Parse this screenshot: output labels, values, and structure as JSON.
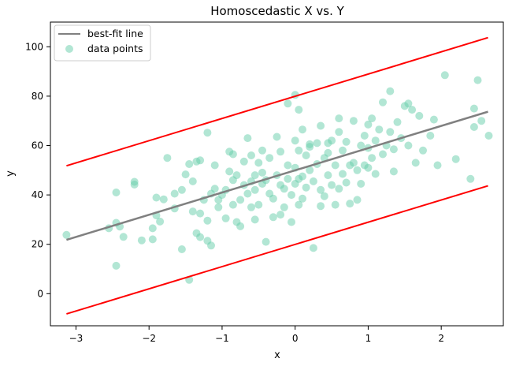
{
  "chart_data": {
    "type": "scatter",
    "title": "Homoscedastic X vs. Y",
    "xlabel": "x",
    "ylabel": "y",
    "xlim": [
      -3.35,
      2.85
    ],
    "ylim": [
      -13,
      110
    ],
    "xticks": [
      -3,
      -2,
      -1,
      0,
      1,
      2
    ],
    "yticks": [
      0,
      20,
      40,
      60,
      80,
      100
    ],
    "grid": false,
    "legend_position": "top-left",
    "colors": {
      "points": "#66cdaa",
      "fit_line": "#808080",
      "bounds": "#ff0000"
    },
    "series": [
      {
        "name": "best-fit line",
        "kind": "line",
        "x": [
          -3.13,
          2.64
        ],
        "y": [
          21.8,
          73.7
        ]
      },
      {
        "kind": "line",
        "x": [
          -3.13,
          2.64
        ],
        "y": [
          51.8,
          103.7
        ]
      },
      {
        "kind": "line",
        "x": [
          -3.13,
          2.64
        ],
        "y": [
          -8.2,
          43.7
        ]
      },
      {
        "name": "data points",
        "kind": "scatter",
        "points": [
          [
            -3.13,
            23.8
          ],
          [
            -2.55,
            26.5
          ],
          [
            -2.45,
            28.7
          ],
          [
            -2.4,
            27.2
          ],
          [
            -2.35,
            23.0
          ],
          [
            -2.45,
            41.0
          ],
          [
            -2.45,
            11.3
          ],
          [
            -2.2,
            44.2
          ],
          [
            -2.2,
            45.3
          ],
          [
            -2.1,
            21.6
          ],
          [
            -1.95,
            22.0
          ],
          [
            -1.95,
            26.5
          ],
          [
            -1.9,
            31.7
          ],
          [
            -1.85,
            29.2
          ],
          [
            -1.9,
            38.9
          ],
          [
            -1.8,
            38.2
          ],
          [
            -1.75,
            55.0
          ],
          [
            -1.65,
            40.5
          ],
          [
            -1.55,
            42.0
          ],
          [
            -1.55,
            18.0
          ],
          [
            -1.5,
            48.3
          ],
          [
            -1.45,
            52.5
          ],
          [
            -1.45,
            5.6
          ],
          [
            -1.4,
            33.3
          ],
          [
            -1.4,
            45.5
          ],
          [
            -1.35,
            53.5
          ],
          [
            -1.35,
            24.5
          ],
          [
            -1.3,
            22.9
          ],
          [
            -1.3,
            32.5
          ],
          [
            -1.3,
            54.0
          ],
          [
            -1.25,
            38.0
          ],
          [
            -1.2,
            29.6
          ],
          [
            -1.2,
            21.4
          ],
          [
            -1.15,
            19.5
          ],
          [
            -1.2,
            65.2
          ],
          [
            -1.15,
            40.5
          ],
          [
            -1.1,
            42.5
          ],
          [
            -1.1,
            52.0
          ],
          [
            -1.05,
            35.0
          ],
          [
            -1.05,
            38.0
          ],
          [
            -1.0,
            40.0
          ],
          [
            -0.95,
            30.5
          ],
          [
            -0.95,
            42.0
          ],
          [
            -0.9,
            57.5
          ],
          [
            -0.9,
            49.5
          ],
          [
            -0.85,
            46.0
          ],
          [
            -0.85,
            36.0
          ],
          [
            -0.8,
            48.0
          ],
          [
            -0.8,
            29.0
          ],
          [
            -0.75,
            27.3
          ],
          [
            -0.75,
            38.0
          ],
          [
            -0.7,
            53.5
          ],
          [
            -0.7,
            44.0
          ],
          [
            -0.65,
            63.0
          ],
          [
            -0.65,
            40.5
          ],
          [
            -0.6,
            56.0
          ],
          [
            -0.6,
            35.0
          ],
          [
            -0.55,
            42.0
          ],
          [
            -0.55,
            30.0
          ],
          [
            -0.5,
            53.0
          ],
          [
            -0.5,
            36.0
          ],
          [
            -0.45,
            44.5
          ],
          [
            -0.45,
            58.0
          ],
          [
            -0.45,
            49.0
          ],
          [
            -0.4,
            46.0
          ],
          [
            -0.4,
            21.0
          ],
          [
            -0.35,
            40.5
          ],
          [
            -0.35,
            55.0
          ],
          [
            -0.3,
            38.5
          ],
          [
            -0.3,
            31.0
          ],
          [
            -0.25,
            48.0
          ],
          [
            -0.25,
            63.5
          ],
          [
            -0.2,
            44.0
          ],
          [
            -0.2,
            57.5
          ],
          [
            -0.15,
            35.0
          ],
          [
            -0.15,
            42.5
          ],
          [
            -0.1,
            46.5
          ],
          [
            -0.1,
            52.0
          ],
          [
            -0.05,
            40.0
          ],
          [
            -0.05,
            29.0
          ],
          [
            0.0,
            44.5
          ],
          [
            0.0,
            51.0
          ],
          [
            0.0,
            62.0
          ],
          [
            0.05,
            36.0
          ],
          [
            0.05,
            46.5
          ],
          [
            0.05,
            58.0
          ],
          [
            0.1,
            47.5
          ],
          [
            0.1,
            38.5
          ],
          [
            0.1,
            66.5
          ],
          [
            0.15,
            43.0
          ],
          [
            0.15,
            56.0
          ],
          [
            0.2,
            50.0
          ],
          [
            0.2,
            59.5
          ],
          [
            0.25,
            18.5
          ],
          [
            0.25,
            45.5
          ],
          [
            0.3,
            52.5
          ],
          [
            0.3,
            61.0
          ],
          [
            0.35,
            42.0
          ],
          [
            0.35,
            68.0
          ],
          [
            0.4,
            39.5
          ],
          [
            0.4,
            55.0
          ],
          [
            0.45,
            48.0
          ],
          [
            0.45,
            57.0
          ],
          [
            0.5,
            44.0
          ],
          [
            0.5,
            62.0
          ],
          [
            0.55,
            36.0
          ],
          [
            0.55,
            52.0
          ],
          [
            0.6,
            42.5
          ],
          [
            0.6,
            65.5
          ],
          [
            0.65,
            48.5
          ],
          [
            0.65,
            58.0
          ],
          [
            0.7,
            45.0
          ],
          [
            0.7,
            61.5
          ],
          [
            0.75,
            36.5
          ],
          [
            0.75,
            52.0
          ],
          [
            0.8,
            53.0
          ],
          [
            0.8,
            70.0
          ],
          [
            0.85,
            50.0
          ],
          [
            0.9,
            60.0
          ],
          [
            0.9,
            44.5
          ],
          [
            0.95,
            64.0
          ],
          [
            0.95,
            52.0
          ],
          [
            1.0,
            68.5
          ],
          [
            1.0,
            59.0
          ],
          [
            1.05,
            55.0
          ],
          [
            1.05,
            71.0
          ],
          [
            1.1,
            62.0
          ],
          [
            1.1,
            48.5
          ],
          [
            1.15,
            66.5
          ],
          [
            1.2,
            56.5
          ],
          [
            1.2,
            77.5
          ],
          [
            1.25,
            60.0
          ],
          [
            1.3,
            82.0
          ],
          [
            1.3,
            65.5
          ],
          [
            1.35,
            49.5
          ],
          [
            1.35,
            58.5
          ],
          [
            1.4,
            69.5
          ],
          [
            1.45,
            63.0
          ],
          [
            1.5,
            76.0
          ],
          [
            1.55,
            60.0
          ],
          [
            1.6,
            74.5
          ],
          [
            1.65,
            53.0
          ],
          [
            1.7,
            72.0
          ],
          [
            1.75,
            58.0
          ],
          [
            1.85,
            64.0
          ],
          [
            1.9,
            70.5
          ],
          [
            1.95,
            52.0
          ],
          [
            2.05,
            88.5
          ],
          [
            2.2,
            54.5
          ],
          [
            2.4,
            46.5
          ],
          [
            2.45,
            75.0
          ],
          [
            2.5,
            86.5
          ],
          [
            2.55,
            70.0
          ],
          [
            2.65,
            64.0
          ],
          [
            2.45,
            67.5
          ],
          [
            0.0,
            80.5
          ],
          [
            0.05,
            74.5
          ],
          [
            -0.1,
            77.0
          ],
          [
            -0.85,
            56.5
          ],
          [
            0.6,
            71.0
          ],
          [
            1.55,
            77.0
          ],
          [
            0.35,
            35.5
          ],
          [
            -0.6,
            45.5
          ],
          [
            0.85,
            38.0
          ],
          [
            1.0,
            51.0
          ],
          [
            -1.65,
            34.5
          ],
          [
            -0.2,
            32.0
          ],
          [
            0.45,
            61.0
          ],
          [
            0.2,
            60.5
          ],
          [
            -0.55,
            48.0
          ]
        ]
      }
    ]
  }
}
